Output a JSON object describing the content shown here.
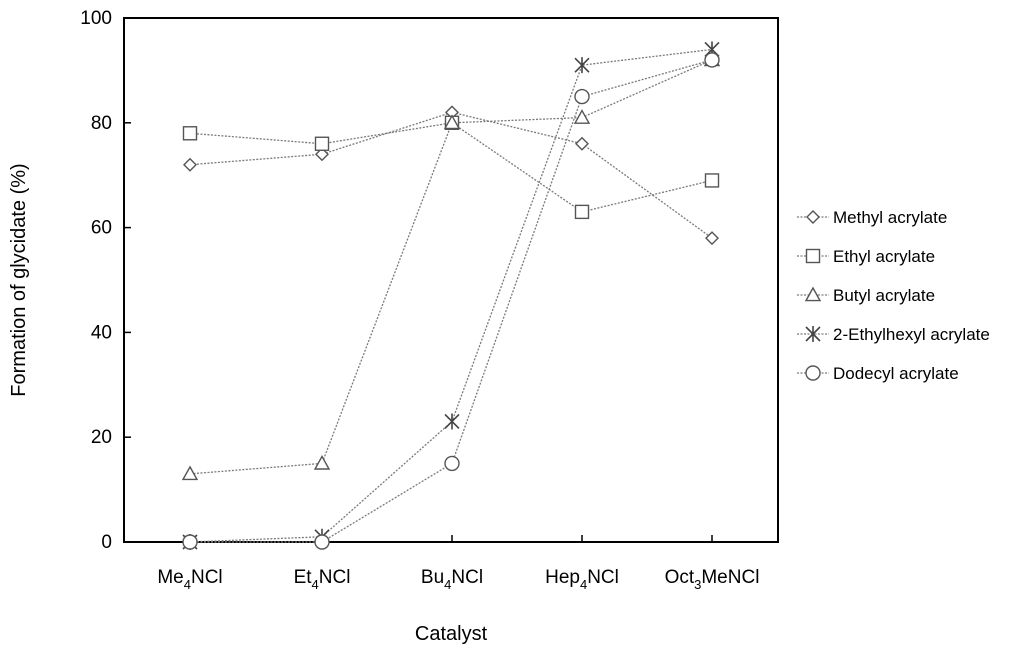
{
  "chart_data": {
    "type": "line",
    "xlabel": "Catalyst",
    "ylabel": "Formation of glycidate (%)",
    "ylim": [
      0,
      100
    ],
    "yticks": [
      0,
      20,
      40,
      60,
      80,
      100
    ],
    "grid": false,
    "legend_position": "right",
    "categories": [
      {
        "base": "Me",
        "sub": "4",
        "rest": "NCl"
      },
      {
        "base": "Et",
        "sub": "4",
        "rest": "NCl"
      },
      {
        "base": "Bu",
        "sub": "4",
        "rest": "NCl"
      },
      {
        "base": "Hep",
        "sub": "4",
        "rest": "NCl"
      },
      {
        "base": "Oct",
        "sub": "3",
        "rest": "MeNCl"
      }
    ],
    "series": [
      {
        "name": "Methyl acrylate",
        "marker": "diamond",
        "values": [
          72,
          74,
          82,
          76,
          58
        ]
      },
      {
        "name": "Ethyl acrylate",
        "marker": "square",
        "values": [
          78,
          76,
          80,
          63,
          69
        ]
      },
      {
        "name": "Butyl acrylate",
        "marker": "triangle",
        "values": [
          13,
          15,
          80,
          81,
          92
        ]
      },
      {
        "name": "2-Ethylhexyl acrylate",
        "marker": "asterisk",
        "values": [
          0,
          1,
          23,
          91,
          94
        ]
      },
      {
        "name": "Dodecyl acrylate",
        "marker": "circle",
        "values": [
          0,
          0,
          15,
          85,
          92
        ]
      }
    ]
  }
}
